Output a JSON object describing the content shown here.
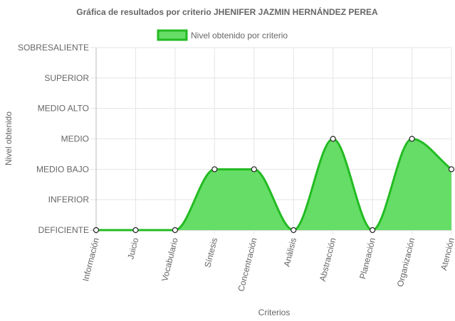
{
  "chart_data": {
    "type": "area",
    "title": "Gráfica de resultados por criterio  JHENIFER JAZMIN HERNÁNDEZ PEREA",
    "xlabel": "Criterios",
    "ylabel": "Nivel obtenido",
    "categories": [
      "Información",
      "Juicio",
      "Vocabulario",
      "Síntesis",
      "Concentración",
      "Análisis",
      "Abstracción",
      "Planeación",
      "Organización",
      "Atención"
    ],
    "y_levels": [
      "DEFICIENTE",
      "INFERIOR",
      "MEDIO BAJO",
      "MEDIO",
      "MEDIO ALTO",
      "SUPERIOR",
      "SOBRESALIENTE"
    ],
    "ylim": [
      0,
      6
    ],
    "series": [
      {
        "name": "Nivel obtenido por criterio",
        "values": [
          0,
          0,
          0,
          2,
          2,
          0,
          3,
          0,
          3,
          2
        ],
        "fill_color": "#66dd66",
        "line_color": "#22bb22"
      }
    ],
    "legend_position": "top",
    "grid": true
  }
}
